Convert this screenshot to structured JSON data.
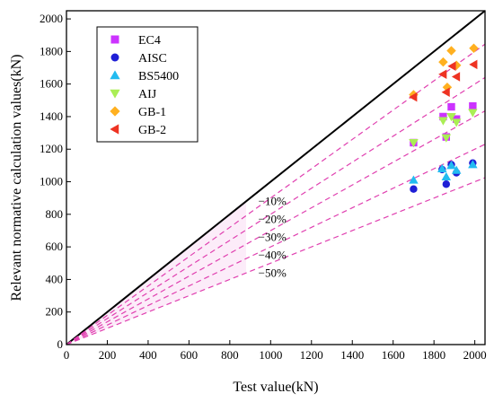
{
  "chart_data": {
    "type": "scatter",
    "title": "",
    "xlabel": "Test value(kN)",
    "ylabel": "Relevant normative calculation values(kN)",
    "xlim": [
      0,
      2050
    ],
    "ylim": [
      0,
      2050
    ],
    "xticks": [
      "0",
      "200",
      "400",
      "600",
      "800",
      "1000",
      "1200",
      "1400",
      "1600",
      "1800",
      "2000"
    ],
    "yticks": [
      "0",
      "200",
      "400",
      "600",
      "800",
      "1000",
      "1200",
      "1400",
      "1600",
      "1800",
      "2000"
    ],
    "grid": false,
    "legend_position": "top-left",
    "reference_lines": [
      {
        "label": "",
        "slope": 1.0,
        "color": "#000000",
        "style": "solid"
      },
      {
        "label": "−10%",
        "slope": 0.9,
        "color": "#e040b0",
        "style": "dashed"
      },
      {
        "label": "−20%",
        "slope": 0.8,
        "color": "#e040b0",
        "style": "dashed"
      },
      {
        "label": "−30%",
        "slope": 0.7,
        "color": "#e040b0",
        "style": "dashed"
      },
      {
        "label": "−40%",
        "slope": 0.6,
        "color": "#e040b0",
        "style": "dashed"
      },
      {
        "label": "−50%",
        "slope": 0.5,
        "color": "#e040b0",
        "style": "dashed"
      }
    ],
    "series": [
      {
        "name": "EC4",
        "marker": "square",
        "color": "#cc33ff",
        "x": [
          1700,
          1845,
          1860,
          1885,
          1910,
          1990
        ],
        "y": [
          1240,
          1400,
          1275,
          1460,
          1385,
          1465
        ]
      },
      {
        "name": "AISC",
        "marker": "circle",
        "color": "#1f1fd6",
        "x": [
          1700,
          1840,
          1860,
          1885,
          1910,
          1990
        ],
        "y": [
          955,
          1075,
          985,
          1105,
          1055,
          1115
        ]
      },
      {
        "name": "BS5400",
        "marker": "triangle-up",
        "color": "#22bbf0",
        "x": [
          1700,
          1840,
          1860,
          1885,
          1910,
          1990
        ],
        "y": [
          1010,
          1080,
          1030,
          1100,
          1070,
          1105
        ]
      },
      {
        "name": "AIJ",
        "marker": "triangle-down",
        "color": "#aaee55",
        "x": [
          1700,
          1845,
          1860,
          1885,
          1910,
          1990
        ],
        "y": [
          1240,
          1375,
          1270,
          1400,
          1365,
          1425
        ]
      },
      {
        "name": "GB-1",
        "marker": "diamond",
        "color": "#ffb020",
        "x": [
          1700,
          1845,
          1865,
          1885,
          1910,
          1995
        ],
        "y": [
          1535,
          1735,
          1580,
          1805,
          1715,
          1820
        ]
      },
      {
        "name": "GB-2",
        "marker": "triangle-left",
        "color": "#ee3322",
        "x": [
          1700,
          1845,
          1860,
          1890,
          1910,
          1995
        ],
        "y": [
          1520,
          1660,
          1550,
          1710,
          1645,
          1720
        ]
      }
    ]
  }
}
